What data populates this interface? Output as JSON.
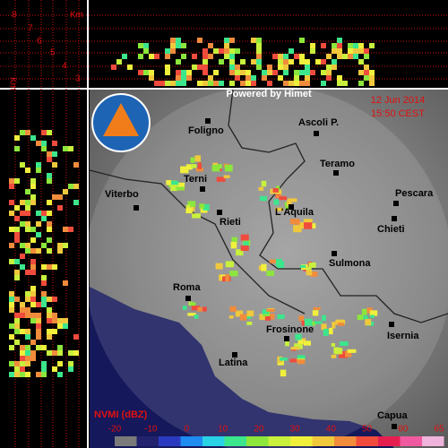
{
  "header": {
    "brand": "Powered by Himet",
    "date": "12 Jun 2014",
    "time": "15:50 CEST"
  },
  "profile": {
    "unit_top": "Km",
    "unit_side": "Km",
    "heights": [
      "8",
      "7",
      "6",
      "5",
      "4",
      "3"
    ]
  },
  "cities": [
    {
      "label": "Foligno"
    },
    {
      "label": "Ascoli P."
    },
    {
      "label": "Teramo"
    },
    {
      "label": "Terni"
    },
    {
      "label": "Viterbo"
    },
    {
      "label": "Pescara"
    },
    {
      "label": "L'Aquila"
    },
    {
      "label": "Rieti"
    },
    {
      "label": "Chieti"
    },
    {
      "label": "Sulmona"
    },
    {
      "label": "Roma"
    },
    {
      "label": "Frosinone"
    },
    {
      "label": "Isernia"
    },
    {
      "label": "Latina"
    },
    {
      "label": "Capua"
    }
  ],
  "legend": {
    "title": "NVMI (dBZ)",
    "ticks": [
      -20,
      -10,
      0,
      10,
      20,
      30,
      40,
      50,
      60,
      65
    ]
  }
}
